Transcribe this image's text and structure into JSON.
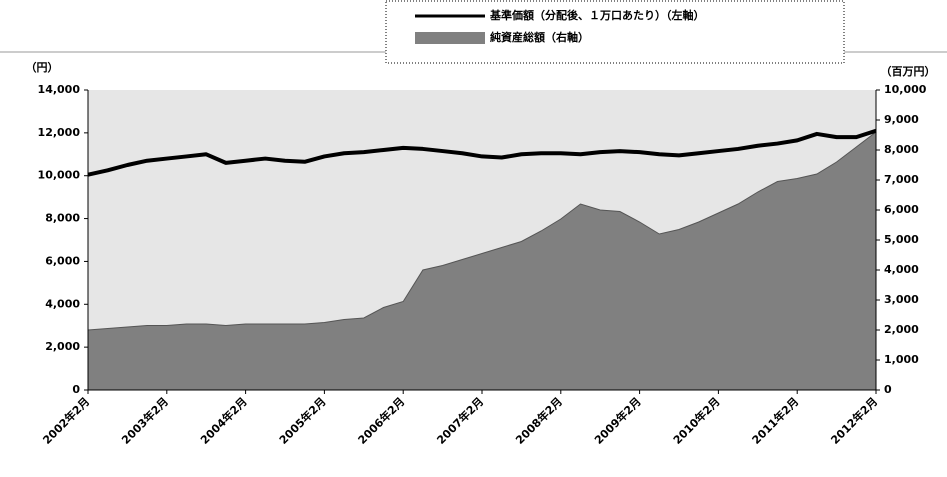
{
  "chart_data": {
    "type": "line-area",
    "y_unit": "（円）",
    "y2_unit": "（百万円）",
    "categories": [
      "2002年2月",
      null,
      null,
      null,
      "2003年2月",
      null,
      null,
      null,
      "2004年2月",
      null,
      null,
      null,
      "2005年2月",
      null,
      null,
      null,
      "2006年2月",
      null,
      null,
      null,
      "2007年2月",
      null,
      null,
      null,
      "2008年2月",
      null,
      null,
      null,
      "2009年2月",
      null,
      null,
      null,
      "2010年2月",
      null,
      null,
      null,
      "2011年2月",
      null,
      null,
      null,
      "2012年2月"
    ],
    "series": [
      {
        "name": "基準価額（分配後、１万口あたり）（左軸）",
        "color": "#000000",
        "kind": "line",
        "axis": "y",
        "values": [
          10050,
          10250,
          10500,
          10700,
          10800,
          10900,
          11000,
          10600,
          10700,
          10800,
          10700,
          10650,
          10900,
          11050,
          11100,
          11200,
          11300,
          11250,
          11150,
          11050,
          10900,
          10850,
          11000,
          11050,
          11050,
          11000,
          11100,
          11150,
          11100,
          11000,
          10950,
          11050,
          11150,
          11250,
          11400,
          11500,
          11650,
          11950,
          11800,
          11800,
          12100
        ]
      },
      {
        "name": "純資産総額（右軸）",
        "color": "#808080",
        "kind": "area",
        "axis": "y2",
        "values": [
          2000,
          2050,
          2100,
          2150,
          2150,
          2200,
          2200,
          2150,
          2200,
          2200,
          2200,
          2200,
          2250,
          2350,
          2400,
          2750,
          2950,
          4000,
          4150,
          4350,
          4550,
          4750,
          4950,
          5300,
          5700,
          6200,
          6000,
          5950,
          5600,
          5200,
          5350,
          5600,
          5900,
          6200,
          6600,
          6950,
          7050,
          7200,
          7600,
          8100,
          8600
        ]
      }
    ],
    "ylim": [
      0,
      14000
    ],
    "yticks": [
      0,
      {
        "value": 2000,
        "label": "2,000"
      },
      {
        "value": 4000,
        "label": "4,000"
      },
      {
        "value": 6000,
        "label": "6,000"
      },
      {
        "value": 8000,
        "label": "8,000"
      },
      {
        "value": 10000,
        "label": "10,000"
      },
      {
        "value": 12000,
        "label": "12,000"
      },
      {
        "value": 14000,
        "label": "14,000"
      }
    ],
    "y2lim": [
      0,
      10000
    ],
    "y2ticks": [
      0,
      {
        "value": 1000,
        "label": "1,000"
      },
      {
        "value": 2000,
        "label": "2,000"
      },
      {
        "value": 3000,
        "label": "3,000"
      },
      {
        "value": 4000,
        "label": "4,000"
      },
      {
        "value": 5000,
        "label": "5,000"
      },
      {
        "value": 6000,
        "label": "6,000"
      },
      {
        "value": 7000,
        "label": "7,000"
      },
      {
        "value": 8000,
        "label": "8,000"
      },
      {
        "value": 9000,
        "label": "9,000"
      },
      {
        "value": 10000,
        "label": "10,000"
      }
    ],
    "plot_background": "#e6e6e6"
  }
}
